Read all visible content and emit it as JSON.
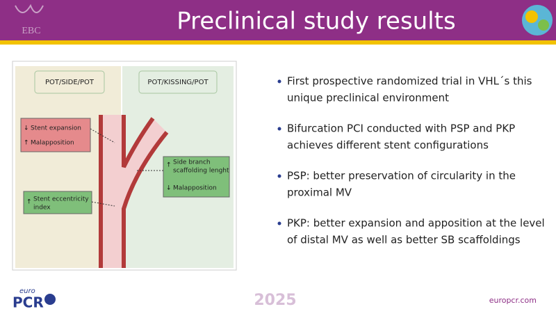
{
  "header": {
    "title": "Preclinical study results",
    "logo_left": "EBC"
  },
  "figure": {
    "panels": [
      "POT/SIDE/POT",
      "POT/KISSING/POT"
    ],
    "boxes": [
      {
        "lines": [
          "Stent expansion",
          "Malapposition"
        ]
      },
      {
        "lines": [
          "Side branch",
          "scaffolding lenght",
          "Malapposition"
        ]
      },
      {
        "lines": [
          "Stent eccentricity",
          "index"
        ]
      }
    ]
  },
  "bullets": [
    [
      "First prospective randomized trial in VHL´s this",
      "unique preclinical environment"
    ],
    [
      "Bifurcation PCI conducted with PSP and PKP",
      "achieves different stent configurations"
    ],
    [
      "PSP: better preservation of circularity in the",
      "proximal MV"
    ],
    [
      "PKP: better expansion and apposition at the level",
      "of distal MV as well as better SB scaffoldings"
    ]
  ],
  "footer": {
    "logo_top": "euro",
    "logo_main": "PCR",
    "year": "2025",
    "url": "europcr.com"
  }
}
